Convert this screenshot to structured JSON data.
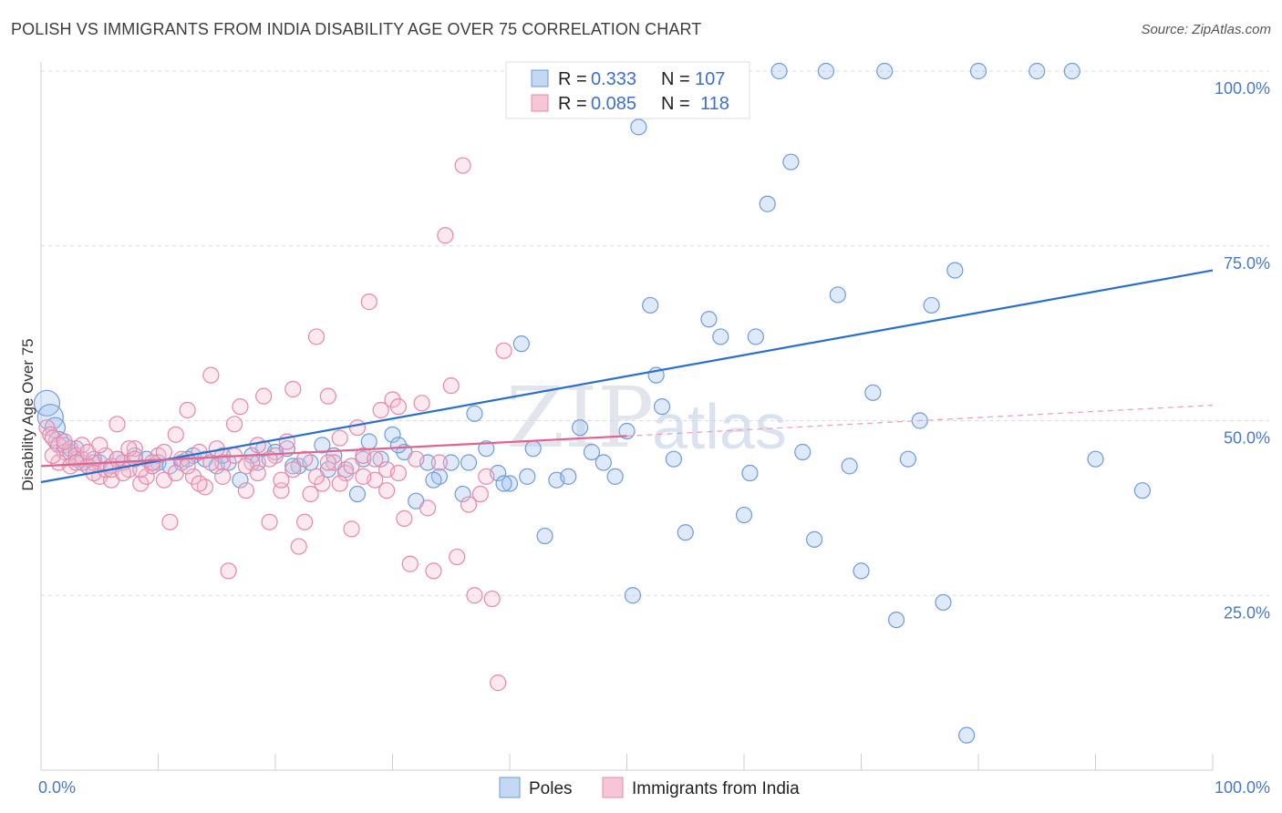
{
  "title": "POLISH VS IMMIGRANTS FROM INDIA DISABILITY AGE OVER 75 CORRELATION CHART",
  "source": "Source: ZipAtlas.com",
  "colors": {
    "blue": "#5b8fd6",
    "blue_line": "#2a6fd0",
    "pink": "#e67fa2",
    "pink_line": "#e0648e",
    "axis_text": "#4a78c4"
  },
  "legend": {
    "r_label": "R =",
    "n_label": "N =",
    "entries": [
      {
        "r": "0.333",
        "n": "107"
      },
      {
        "r": "0.085",
        "n": "118"
      }
    ]
  },
  "watermark": {
    "zip": "ZIP",
    "atlas": "atlas"
  },
  "chart_data": {
    "type": "scatter",
    "ylabel": "Disability Age Over 75",
    "xlim": [
      0,
      100
    ],
    "ylim": [
      0,
      100
    ],
    "x_tick_labels": [
      "0.0%",
      "100.0%"
    ],
    "y_tick_values": [
      25,
      50,
      75,
      100
    ],
    "y_tick_labels": [
      "25.0%",
      "50.0%",
      "75.0%",
      "100.0%"
    ],
    "grid": true,
    "legend_position": "top-center",
    "series": [
      {
        "name": "Poles",
        "color": "#5b8fd6",
        "trend": {
          "x": [
            0,
            100
          ],
          "y": [
            41.2,
            71.5
          ]
        },
        "points": [
          [
            0.5,
            52.5
          ],
          [
            0.8,
            50.5
          ],
          [
            1.2,
            49.0
          ],
          [
            1.5,
            47.0
          ],
          [
            2,
            46.5
          ],
          [
            2.5,
            45.5
          ],
          [
            3,
            44.5
          ],
          [
            3.5,
            44.0
          ],
          [
            4,
            43.5
          ],
          [
            4.5,
            44.5
          ],
          [
            5,
            44.0
          ],
          [
            6,
            43.5
          ],
          [
            7,
            44.0
          ],
          [
            8,
            45.0
          ],
          [
            9,
            44.5
          ],
          [
            10,
            44.0
          ],
          [
            11,
            43.5
          ],
          [
            12,
            44.0
          ],
          [
            13,
            45.0
          ],
          [
            14,
            44.5
          ],
          [
            15,
            43.5
          ],
          [
            16,
            44.0
          ],
          [
            17,
            41.5
          ],
          [
            18,
            45.0
          ],
          [
            19,
            46.0
          ],
          [
            20,
            45.5
          ],
          [
            21,
            46.0
          ],
          [
            22,
            43.5
          ],
          [
            23,
            44.0
          ],
          [
            24,
            46.5
          ],
          [
            25,
            45.0
          ],
          [
            26,
            43.0
          ],
          [
            27,
            39.5
          ],
          [
            28,
            47.0
          ],
          [
            29,
            44.5
          ],
          [
            30,
            48.0
          ],
          [
            31,
            45.5
          ],
          [
            32,
            38.5
          ],
          [
            33,
            44.0
          ],
          [
            34,
            42.0
          ],
          [
            35,
            44.0
          ],
          [
            36,
            39.5
          ],
          [
            37,
            51.0
          ],
          [
            38,
            46.0
          ],
          [
            39,
            42.5
          ],
          [
            40,
            41.0
          ],
          [
            41,
            61.0
          ],
          [
            41.5,
            42.0
          ],
          [
            42,
            46.0
          ],
          [
            43,
            33.5
          ],
          [
            44,
            41.5
          ],
          [
            45,
            42.0
          ],
          [
            46,
            49.0
          ],
          [
            47,
            45.5
          ],
          [
            48,
            44.0
          ],
          [
            49,
            42.0
          ],
          [
            50,
            48.5
          ],
          [
            50.5,
            25.0
          ],
          [
            51,
            92.0
          ],
          [
            52,
            66.5
          ],
          [
            52.5,
            56.5
          ],
          [
            53,
            52.0
          ],
          [
            54,
            44.5
          ],
          [
            55,
            34.0
          ],
          [
            56,
            100.0
          ],
          [
            57,
            64.5
          ],
          [
            58,
            62.0
          ],
          [
            59,
            100.0
          ],
          [
            60,
            36.5
          ],
          [
            60.5,
            42.5
          ],
          [
            61,
            62.0
          ],
          [
            62,
            81.0
          ],
          [
            63,
            100.0
          ],
          [
            64,
            87.0
          ],
          [
            65,
            45.5
          ],
          [
            66,
            33.0
          ],
          [
            67,
            100.0
          ],
          [
            68,
            68.0
          ],
          [
            69,
            43.5
          ],
          [
            70,
            28.5
          ],
          [
            71,
            54.0
          ],
          [
            72,
            100.0
          ],
          [
            73,
            21.5
          ],
          [
            74,
            44.5
          ],
          [
            75,
            50.0
          ],
          [
            76,
            66.5
          ],
          [
            77,
            24.0
          ],
          [
            78,
            71.5
          ],
          [
            79,
            5.0
          ],
          [
            80,
            100.0
          ],
          [
            85,
            100.0
          ],
          [
            88,
            100.0
          ],
          [
            90,
            44.5
          ],
          [
            94,
            40.0
          ],
          [
            3.0,
            46.0
          ],
          [
            6.5,
            44.5
          ],
          [
            9.5,
            43.5
          ],
          [
            12.5,
            44.5
          ],
          [
            15.5,
            45.0
          ],
          [
            18.5,
            44.0
          ],
          [
            21.5,
            43.5
          ],
          [
            24.5,
            43.0
          ],
          [
            27.5,
            44.5
          ],
          [
            30.5,
            46.5
          ],
          [
            33.5,
            41.5
          ],
          [
            36.5,
            44.0
          ],
          [
            39.5,
            41.0
          ]
        ]
      },
      {
        "name": "Immigrants from India",
        "color": "#e67fa2",
        "trend": {
          "x": [
            0,
            50
          ],
          "y": [
            43.5,
            47.8
          ]
        },
        "trend_dashed": {
          "x": [
            50,
            100
          ],
          "y": [
            47.8,
            52.2
          ]
        },
        "points": [
          [
            0.5,
            49.0
          ],
          [
            0.8,
            48.0
          ],
          [
            1.0,
            47.5
          ],
          [
            1.5,
            46.5
          ],
          [
            2,
            45.5
          ],
          [
            2.5,
            46.0
          ],
          [
            3,
            45.0
          ],
          [
            3.5,
            44.5
          ],
          [
            4,
            43.5
          ],
          [
            4.5,
            44.0
          ],
          [
            5,
            42.0
          ],
          [
            5.5,
            45.0
          ],
          [
            6,
            41.5
          ],
          [
            6.5,
            49.5
          ],
          [
            7,
            44.0
          ],
          [
            7.5,
            43.0
          ],
          [
            8,
            46.0
          ],
          [
            8.5,
            41.0
          ],
          [
            9,
            42.0
          ],
          [
            9.5,
            43.5
          ],
          [
            10,
            45.0
          ],
          [
            10.5,
            41.5
          ],
          [
            11,
            35.5
          ],
          [
            11.5,
            48.0
          ],
          [
            12,
            44.5
          ],
          [
            12.5,
            51.5
          ],
          [
            13,
            42.0
          ],
          [
            13.5,
            45.5
          ],
          [
            14,
            40.5
          ],
          [
            14.5,
            56.5
          ],
          [
            15,
            46.0
          ],
          [
            15.5,
            44.0
          ],
          [
            16,
            28.5
          ],
          [
            16.5,
            49.5
          ],
          [
            17,
            52.0
          ],
          [
            17.5,
            40.0
          ],
          [
            18,
            44.0
          ],
          [
            18.5,
            46.5
          ],
          [
            19,
            53.5
          ],
          [
            19.5,
            35.5
          ],
          [
            20,
            45.0
          ],
          [
            20.5,
            40.0
          ],
          [
            21,
            47.0
          ],
          [
            21.5,
            54.5
          ],
          [
            22,
            32.0
          ],
          [
            22.5,
            35.5
          ],
          [
            23,
            39.5
          ],
          [
            23.5,
            62.0
          ],
          [
            24,
            41.0
          ],
          [
            24.5,
            53.5
          ],
          [
            25,
            44.0
          ],
          [
            25.5,
            47.5
          ],
          [
            26,
            42.5
          ],
          [
            26.5,
            34.5
          ],
          [
            27,
            49.0
          ],
          [
            27.5,
            45.0
          ],
          [
            28,
            67.0
          ],
          [
            28.5,
            41.5
          ],
          [
            29,
            51.5
          ],
          [
            29.5,
            40.0
          ],
          [
            30,
            53.0
          ],
          [
            30.5,
            52.0
          ],
          [
            31,
            36.0
          ],
          [
            31.5,
            29.5
          ],
          [
            32,
            44.5
          ],
          [
            32.5,
            52.5
          ],
          [
            33,
            37.5
          ],
          [
            33.5,
            28.5
          ],
          [
            34,
            44.0
          ],
          [
            34.5,
            76.5
          ],
          [
            35,
            55.0
          ],
          [
            35.5,
            30.5
          ],
          [
            36,
            86.5
          ],
          [
            36.5,
            38.0
          ],
          [
            37,
            25.0
          ],
          [
            37.5,
            39.5
          ],
          [
            38,
            42.0
          ],
          [
            38.5,
            24.5
          ],
          [
            39,
            12.5
          ],
          [
            39.5,
            60.0
          ],
          [
            1.5,
            44.0
          ],
          [
            2.5,
            43.5
          ],
          [
            3.5,
            46.5
          ],
          [
            4.5,
            42.5
          ],
          [
            5.5,
            43.0
          ],
          [
            6.5,
            44.5
          ],
          [
            7.5,
            46.0
          ],
          [
            8.5,
            43.0
          ],
          [
            9.5,
            44.0
          ],
          [
            10.5,
            45.5
          ],
          [
            11.5,
            42.5
          ],
          [
            12.5,
            43.5
          ],
          [
            13.5,
            41.0
          ],
          [
            14.5,
            44.0
          ],
          [
            15.5,
            42.0
          ],
          [
            16.5,
            45.0
          ],
          [
            17.5,
            43.5
          ],
          [
            18.5,
            42.5
          ],
          [
            19.5,
            44.5
          ],
          [
            20.5,
            41.5
          ],
          [
            21.5,
            43.0
          ],
          [
            22.5,
            44.5
          ],
          [
            23.5,
            42.0
          ],
          [
            24.5,
            44.0
          ],
          [
            25.5,
            41.0
          ],
          [
            26.5,
            43.5
          ],
          [
            27.5,
            42.0
          ],
          [
            28.5,
            44.5
          ],
          [
            29.5,
            43.0
          ],
          [
            30.5,
            42.5
          ],
          [
            1.0,
            45.0
          ],
          [
            2.0,
            47.0
          ],
          [
            3.0,
            44.0
          ],
          [
            4.0,
            45.5
          ],
          [
            5.0,
            46.5
          ],
          [
            6.0,
            43.0
          ],
          [
            7.0,
            42.5
          ],
          [
            8.0,
            44.5
          ]
        ]
      }
    ]
  }
}
